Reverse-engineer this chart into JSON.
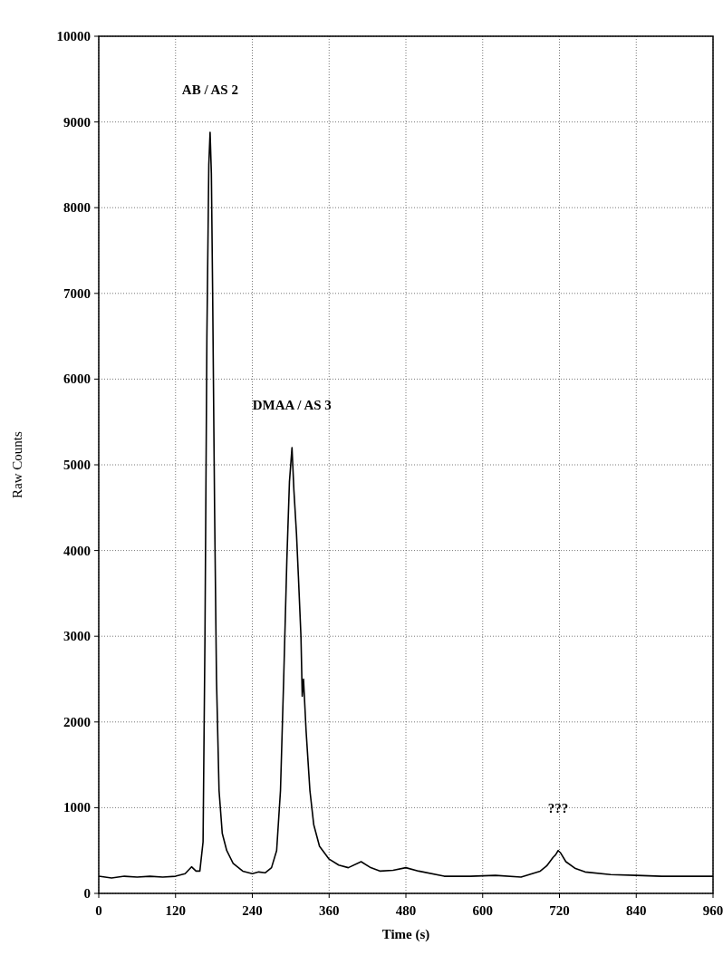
{
  "chart_data": {
    "type": "line",
    "xlabel": "Time (s)",
    "ylabel": "Raw Counts",
    "x": [
      0,
      20,
      40,
      60,
      80,
      100,
      120,
      135,
      145,
      152,
      158,
      163,
      166,
      169,
      172,
      174,
      176,
      178,
      181,
      184,
      188,
      193,
      200,
      210,
      225,
      240,
      250,
      260,
      270,
      278,
      284,
      289,
      294,
      298,
      300,
      302,
      305,
      309,
      312,
      316,
      318,
      320,
      324,
      330,
      336,
      345,
      360,
      375,
      390,
      410,
      425,
      440,
      460,
      480,
      500,
      540,
      580,
      620,
      660,
      690,
      700,
      710,
      714,
      718,
      722,
      730,
      745,
      760,
      800,
      840,
      880,
      920,
      960
    ],
    "series": [
      {
        "color": "#000000",
        "values": [
          200,
          180,
          200,
          190,
          200,
          190,
          200,
          230,
          310,
          260,
          260,
          600,
          3000,
          6500,
          8500,
          8880,
          8400,
          7000,
          4500,
          2500,
          1200,
          700,
          500,
          350,
          260,
          230,
          250,
          240,
          300,
          500,
          1200,
          2500,
          3900,
          4800,
          5000,
          5200,
          4700,
          4200,
          3700,
          3000,
          2300,
          2500,
          1900,
          1200,
          800,
          550,
          400,
          330,
          300,
          370,
          300,
          260,
          270,
          300,
          260,
          200,
          200,
          210,
          190,
          260,
          320,
          420,
          450,
          500,
          470,
          370,
          290,
          250,
          220,
          210,
          200,
          200,
          200
        ]
      }
    ],
    "xlim": [
      0,
      960
    ],
    "xticks": [
      0,
      120,
      240,
      360,
      480,
      600,
      720,
      840,
      960
    ],
    "ylim": [
      0,
      10000
    ],
    "yticks": [
      0,
      1000,
      2000,
      3000,
      4000,
      5000,
      6000,
      7000,
      8000,
      9000,
      10000
    ],
    "grid": true,
    "marker": "none",
    "line_style": "solid",
    "annotations": [
      {
        "text": "AB / AS 2",
        "x": 174,
        "y": 8880
      },
      {
        "text": "DMAA / AS 3",
        "x": 302,
        "y": 5200
      },
      {
        "text": "???",
        "x": 718,
        "y": 500
      }
    ]
  }
}
